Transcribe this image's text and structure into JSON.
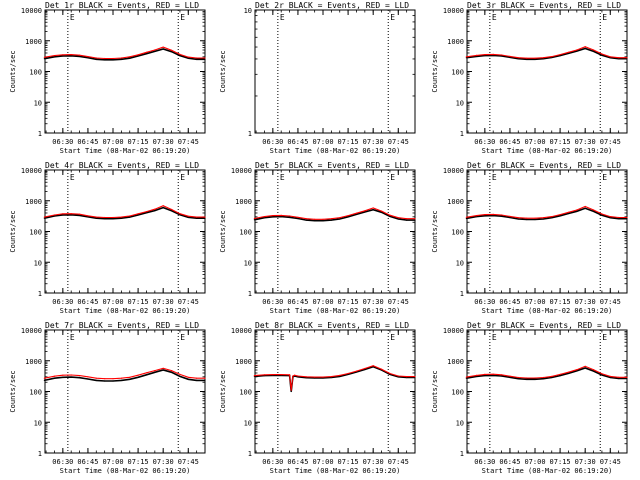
{
  "page": {
    "background": "#ffffff"
  },
  "colors": {
    "events": "#000000",
    "lld": "#ff0000",
    "axis": "#000000"
  },
  "shared": {
    "y_label": "Counts/sec",
    "x_label": "Start Time (08-Mar-02 06:19:20)",
    "x_tick_labels": [
      "06:30",
      "06:45",
      "07:00",
      "07:15",
      "07:30",
      "07:45"
    ],
    "y_tick_labels": [
      "1",
      "10",
      "100",
      "1000",
      "10000"
    ]
  },
  "chart_data": [
    {
      "type": "line",
      "title": "Det 1r  BLACK = Events, RED = LLD",
      "xlabel": "Start Time (08-Mar-02 06:19:20)",
      "ylabel": "Counts/sec",
      "y_scale": "log",
      "ylim": [
        1,
        10000
      ],
      "xlim": [
        "06:19:20",
        "07:55:00"
      ],
      "grid": false,
      "marker_text": "E",
      "vlines": [
        "06:33",
        "07:39"
      ],
      "x": [
        "06:19",
        "06:25",
        "06:30",
        "06:35",
        "06:40",
        "06:45",
        "06:50",
        "06:55",
        "07:00",
        "07:05",
        "07:10",
        "07:15",
        "07:20",
        "07:25",
        "07:30",
        "07:35",
        "07:40",
        "07:45",
        "07:50",
        "07:55"
      ],
      "series": [
        {
          "name": "Events",
          "color": "#000000",
          "values": [
            260,
            300,
            320,
            325,
            310,
            280,
            250,
            240,
            240,
            250,
            270,
            320,
            380,
            450,
            540,
            440,
            330,
            270,
            250,
            250
          ]
        },
        {
          "name": "LLD",
          "color": "#ff0000",
          "values": [
            290,
            330,
            350,
            355,
            340,
            305,
            275,
            265,
            265,
            275,
            300,
            350,
            420,
            500,
            620,
            490,
            360,
            295,
            275,
            275
          ]
        }
      ]
    },
    {
      "type": "line",
      "title": "Det 2r  BLACK = Events, RED = LLD",
      "xlabel": "Start Time (08-Mar-02 06:19:20)",
      "ylabel": "Counts/sec",
      "y_scale": "log",
      "ylim": [
        1,
        10
      ],
      "xlim": [
        "06:19:20",
        "07:55:00"
      ],
      "grid": false,
      "marker_text": "E",
      "vlines": [
        "06:33",
        "07:39"
      ],
      "y_tick_labels": [
        "1",
        "10"
      ],
      "x": [],
      "series": []
    },
    {
      "type": "line",
      "title": "Det 3r  BLACK = Events, RED = LLD",
      "xlabel": "Start Time (08-Mar-02 06:19:20)",
      "ylabel": "Counts/sec",
      "y_scale": "log",
      "ylim": [
        1,
        10000
      ],
      "xlim": [
        "06:19:20",
        "07:55:00"
      ],
      "grid": false,
      "marker_text": "E",
      "vlines": [
        "06:33",
        "07:39"
      ],
      "x": [
        "06:19",
        "06:25",
        "06:30",
        "06:35",
        "06:40",
        "06:45",
        "06:50",
        "06:55",
        "07:00",
        "07:05",
        "07:10",
        "07:15",
        "07:20",
        "07:25",
        "07:30",
        "07:35",
        "07:40",
        "07:45",
        "07:50",
        "07:55"
      ],
      "series": [
        {
          "name": "Events",
          "color": "#000000",
          "values": [
            280,
            310,
            330,
            335,
            320,
            290,
            260,
            250,
            250,
            260,
            285,
            330,
            390,
            460,
            560,
            450,
            340,
            280,
            260,
            260
          ]
        },
        {
          "name": "LLD",
          "color": "#ff0000",
          "values": [
            300,
            335,
            355,
            360,
            345,
            310,
            280,
            270,
            270,
            280,
            305,
            355,
            420,
            500,
            640,
            500,
            370,
            300,
            280,
            280
          ]
        }
      ]
    },
    {
      "type": "line",
      "title": "Det 4r  BLACK = Events, RED = LLD",
      "xlabel": "Start Time (08-Mar-02 06:19:20)",
      "ylabel": "Counts/sec",
      "y_scale": "log",
      "ylim": [
        1,
        10000
      ],
      "xlim": [
        "06:19:20",
        "07:55:00"
      ],
      "grid": false,
      "marker_text": "E",
      "vlines": [
        "06:33",
        "07:39"
      ],
      "x": [
        "06:19",
        "06:25",
        "06:30",
        "06:35",
        "06:40",
        "06:45",
        "06:50",
        "06:55",
        "07:00",
        "07:05",
        "07:10",
        "07:15",
        "07:20",
        "07:25",
        "07:30",
        "07:35",
        "07:40",
        "07:45",
        "07:50",
        "07:55"
      ],
      "series": [
        {
          "name": "Events",
          "color": "#000000",
          "values": [
            270,
            320,
            345,
            350,
            335,
            300,
            270,
            260,
            260,
            270,
            295,
            345,
            410,
            480,
            600,
            470,
            350,
            290,
            270,
            270
          ]
        },
        {
          "name": "LLD",
          "color": "#ff0000",
          "values": [
            295,
            345,
            375,
            380,
            365,
            325,
            295,
            285,
            285,
            295,
            320,
            375,
            445,
            530,
            690,
            520,
            380,
            315,
            295,
            295
          ]
        }
      ]
    },
    {
      "type": "line",
      "title": "Det 5r  BLACK = Events, RED = LLD",
      "xlabel": "Start Time (08-Mar-02 06:19:20)",
      "ylabel": "Counts/sec",
      "y_scale": "log",
      "ylim": [
        1,
        10000
      ],
      "xlim": [
        "06:19:20",
        "07:55:00"
      ],
      "grid": false,
      "marker_text": "E",
      "vlines": [
        "06:33",
        "07:39"
      ],
      "x": [
        "06:19",
        "06:25",
        "06:30",
        "06:35",
        "06:40",
        "06:45",
        "06:50",
        "06:55",
        "07:00",
        "07:05",
        "07:10",
        "07:15",
        "07:20",
        "07:25",
        "07:30",
        "07:35",
        "07:40",
        "07:45",
        "07:50",
        "07:55"
      ],
      "series": [
        {
          "name": "Events",
          "color": "#000000",
          "values": [
            240,
            280,
            300,
            305,
            290,
            265,
            235,
            225,
            225,
            235,
            255,
            300,
            360,
            430,
            510,
            420,
            310,
            255,
            235,
            235
          ]
        },
        {
          "name": "LLD",
          "color": "#ff0000",
          "values": [
            265,
            305,
            330,
            335,
            320,
            290,
            260,
            250,
            250,
            260,
            280,
            330,
            395,
            470,
            580,
            460,
            340,
            280,
            260,
            260
          ]
        }
      ]
    },
    {
      "type": "line",
      "title": "Det 6r  BLACK = Events, RED = LLD",
      "xlabel": "Start Time (08-Mar-02 06:19:20)",
      "ylabel": "Counts/sec",
      "y_scale": "log",
      "ylim": [
        1,
        10000
      ],
      "xlim": [
        "06:19:20",
        "07:55:00"
      ],
      "grid": false,
      "marker_text": "E",
      "vlines": [
        "06:33",
        "07:39"
      ],
      "x": [
        "06:19",
        "06:25",
        "06:30",
        "06:35",
        "06:40",
        "06:45",
        "06:50",
        "06:55",
        "07:00",
        "07:05",
        "07:10",
        "07:15",
        "07:20",
        "07:25",
        "07:30",
        "07:35",
        "07:40",
        "07:45",
        "07:50",
        "07:55"
      ],
      "series": [
        {
          "name": "Events",
          "color": "#000000",
          "values": [
            265,
            305,
            325,
            330,
            315,
            285,
            255,
            245,
            245,
            255,
            280,
            325,
            385,
            455,
            570,
            450,
            340,
            280,
            260,
            260
          ]
        },
        {
          "name": "LLD",
          "color": "#ff0000",
          "values": [
            290,
            330,
            355,
            360,
            345,
            310,
            280,
            270,
            270,
            280,
            305,
            355,
            420,
            500,
            650,
            500,
            370,
            305,
            285,
            285
          ]
        }
      ]
    },
    {
      "type": "line",
      "title": "Det 7r  BLACK = Events, RED = LLD",
      "xlabel": "Start Time (08-Mar-02 06:19:20)",
      "ylabel": "Counts/sec",
      "y_scale": "log",
      "ylim": [
        1,
        10000
      ],
      "xlim": [
        "06:19:20",
        "07:55:00"
      ],
      "grid": false,
      "marker_text": "E",
      "vlines": [
        "06:33",
        "07:39"
      ],
      "x": [
        "06:19",
        "06:25",
        "06:30",
        "06:35",
        "06:40",
        "06:45",
        "06:50",
        "06:55",
        "07:00",
        "07:05",
        "07:10",
        "07:15",
        "07:20",
        "07:25",
        "07:30",
        "07:35",
        "07:40",
        "07:45",
        "07:50",
        "07:55"
      ],
      "series": [
        {
          "name": "Events",
          "color": "#000000",
          "values": [
            230,
            270,
            290,
            295,
            280,
            255,
            230,
            220,
            220,
            230,
            250,
            290,
            350,
            420,
            500,
            420,
            310,
            250,
            230,
            230
          ]
        },
        {
          "name": "LLD",
          "color": "#ff0000",
          "values": [
            270,
            315,
            340,
            345,
            330,
            300,
            270,
            260,
            260,
            270,
            290,
            340,
            405,
            480,
            570,
            480,
            360,
            290,
            270,
            270
          ]
        }
      ]
    },
    {
      "type": "line",
      "title": "Det 8r  BLACK = Events, RED = LLD",
      "xlabel": "Start Time (08-Mar-02 06:19:20)",
      "ylabel": "Counts/sec",
      "y_scale": "log",
      "ylim": [
        1,
        10000
      ],
      "xlim": [
        "06:19:20",
        "07:55:00"
      ],
      "grid": false,
      "marker_text": "E",
      "vlines": [
        "06:33",
        "07:39"
      ],
      "x": [
        "06:19",
        "06:25",
        "06:30",
        "06:35",
        "06:40",
        "06:41",
        "06:42",
        "06:43",
        "06:45",
        "06:50",
        "06:55",
        "07:00",
        "07:05",
        "07:10",
        "07:15",
        "07:20",
        "07:25",
        "07:30",
        "07:35",
        "07:40",
        "07:45",
        "07:50",
        "07:55"
      ],
      "series": [
        {
          "name": "Events",
          "color": "#000000",
          "values": [
            310,
            330,
            335,
            335,
            330,
            100,
            300,
            320,
            300,
            280,
            275,
            275,
            285,
            310,
            360,
            430,
            520,
            640,
            500,
            360,
            300,
            285,
            285
          ]
        },
        {
          "name": "LLD",
          "color": "#ff0000",
          "values": [
            330,
            350,
            355,
            355,
            350,
            110,
            320,
            340,
            320,
            300,
            295,
            295,
            305,
            335,
            385,
            460,
            560,
            690,
            530,
            385,
            320,
            305,
            305
          ]
        }
      ]
    },
    {
      "type": "line",
      "title": "Det 9r  BLACK = Events, RED = LLD",
      "xlabel": "Start Time (08-Mar-02 06:19:20)",
      "ylabel": "Counts/sec",
      "y_scale": "log",
      "ylim": [
        1,
        10000
      ],
      "xlim": [
        "06:19:20",
        "07:55:00"
      ],
      "grid": false,
      "marker_text": "E",
      "vlines": [
        "06:33",
        "07:39"
      ],
      "x": [
        "06:19",
        "06:25",
        "06:30",
        "06:35",
        "06:40",
        "06:45",
        "06:50",
        "06:55",
        "07:00",
        "07:05",
        "07:10",
        "07:15",
        "07:20",
        "07:25",
        "07:30",
        "07:35",
        "07:40",
        "07:45",
        "07:50",
        "07:55"
      ],
      "series": [
        {
          "name": "Events",
          "color": "#000000",
          "values": [
            270,
            310,
            330,
            335,
            320,
            290,
            260,
            250,
            250,
            260,
            285,
            330,
            390,
            470,
            580,
            460,
            345,
            285,
            265,
            265
          ]
        },
        {
          "name": "LLD",
          "color": "#ff0000",
          "values": [
            295,
            335,
            360,
            365,
            350,
            315,
            285,
            275,
            275,
            285,
            310,
            360,
            425,
            510,
            660,
            510,
            375,
            310,
            290,
            290
          ]
        }
      ]
    }
  ]
}
